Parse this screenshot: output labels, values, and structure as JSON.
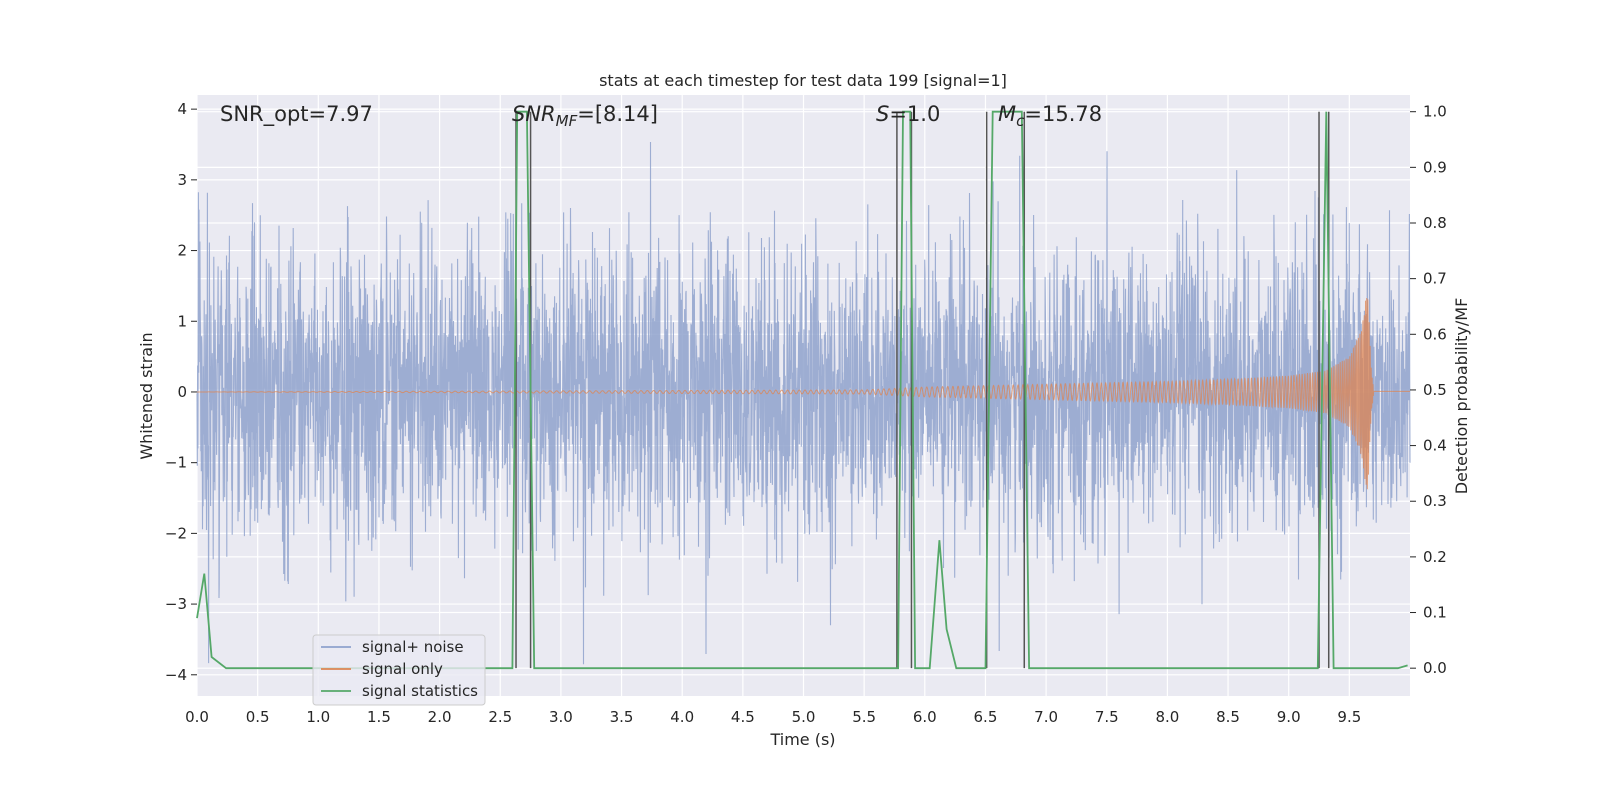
{
  "chart_data": {
    "type": "line",
    "title": "stats at each timestep for test data 199 [signal=1]",
    "xlabel": "Time (s)",
    "ylabel_left": "Whitened strain",
    "ylabel_right": "Detection probability/MF",
    "xlim": [
      0.0,
      10.0
    ],
    "ylim_left": [
      -4.3,
      4.2
    ],
    "ylim_right": [
      -0.05,
      1.03
    ],
    "x_ticks": [
      0.0,
      0.5,
      1.0,
      1.5,
      2.0,
      2.5,
      3.0,
      3.5,
      4.0,
      4.5,
      5.0,
      5.5,
      6.0,
      6.5,
      7.0,
      7.5,
      8.0,
      8.5,
      9.0,
      9.5
    ],
    "x_tick_labels": [
      "0.0",
      "0.5",
      "1.0",
      "1.5",
      "2.0",
      "2.5",
      "3.0",
      "3.5",
      "4.0",
      "4.5",
      "5.0",
      "5.5",
      "6.0",
      "6.5",
      "7.0",
      "7.5",
      "8.0",
      "8.5",
      "9.0",
      "9.5"
    ],
    "y_left_ticks": [
      4,
      3,
      2,
      1,
      0,
      -1,
      -2,
      -3,
      -4
    ],
    "y_left_tick_labels": [
      "4",
      "3",
      "2",
      "1",
      "0",
      "−1",
      "−2",
      "−3",
      "−4"
    ],
    "y_right_ticks": [
      1.0,
      0.9,
      0.8,
      0.7,
      0.6,
      0.5,
      0.4,
      0.3,
      0.2,
      0.1,
      0.0
    ],
    "y_right_tick_labels": [
      "1.0",
      "0.9",
      "0.8",
      "0.7",
      "0.6",
      "0.5",
      "0.4",
      "0.3",
      "0.2",
      "0.1",
      "0.0"
    ],
    "grid": true,
    "legend_position": "lower-left",
    "annotations": {
      "snr_opt": "SNR_opt=7.97",
      "snr_mf_main": "SNR",
      "snr_mf_sub": "MF",
      "snr_mf_value": "=[8.14]",
      "s_main": "S",
      "s_value": "=1.0",
      "mc_main": "M",
      "mc_sub": "c",
      "mc_value": "=15.78"
    },
    "series": [
      {
        "name": "signal+ noise",
        "color": "#8fa2cd",
        "axis": "left",
        "description_stats": {
          "band_low": -1.7,
          "band_high": 1.45,
          "max": 3.85,
          "min": -4.05
        }
      },
      {
        "name": "signal only",
        "color": "#dd8452",
        "axis": "left",
        "envelope": {
          "t": [
            0.0,
            5.5,
            6.0,
            7.0,
            8.0,
            8.5,
            9.0,
            9.3,
            9.5,
            9.6,
            9.65,
            9.68,
            9.7,
            10.0
          ],
          "amp": [
            0.0,
            0.03,
            0.07,
            0.11,
            0.15,
            0.18,
            0.23,
            0.3,
            0.5,
            0.9,
            1.5,
            0.35,
            0.03,
            0.03
          ]
        }
      },
      {
        "name": "signal statistics",
        "color": "#55a868",
        "axis": "right",
        "x": [
          0.0,
          0.06,
          0.12,
          0.24,
          2.6,
          2.64,
          2.72,
          2.78,
          5.78,
          5.82,
          5.88,
          5.92,
          6.04,
          6.12,
          6.18,
          6.26,
          6.5,
          6.56,
          6.8,
          6.86,
          9.24,
          9.31,
          9.37,
          9.9,
          9.98
        ],
        "y": [
          0.09,
          0.17,
          0.02,
          0.0,
          0.0,
          1.0,
          1.0,
          0.0,
          0.0,
          1.0,
          1.0,
          0.0,
          0.0,
          0.23,
          0.07,
          0.0,
          0.0,
          1.0,
          1.0,
          0.0,
          0.0,
          1.0,
          0.0,
          0.0,
          0.005
        ]
      }
    ],
    "threshold_lines": {
      "color": "#555555",
      "x": [
        2.63,
        2.75,
        5.77,
        5.89,
        6.51,
        6.82,
        9.25,
        9.33
      ]
    }
  }
}
